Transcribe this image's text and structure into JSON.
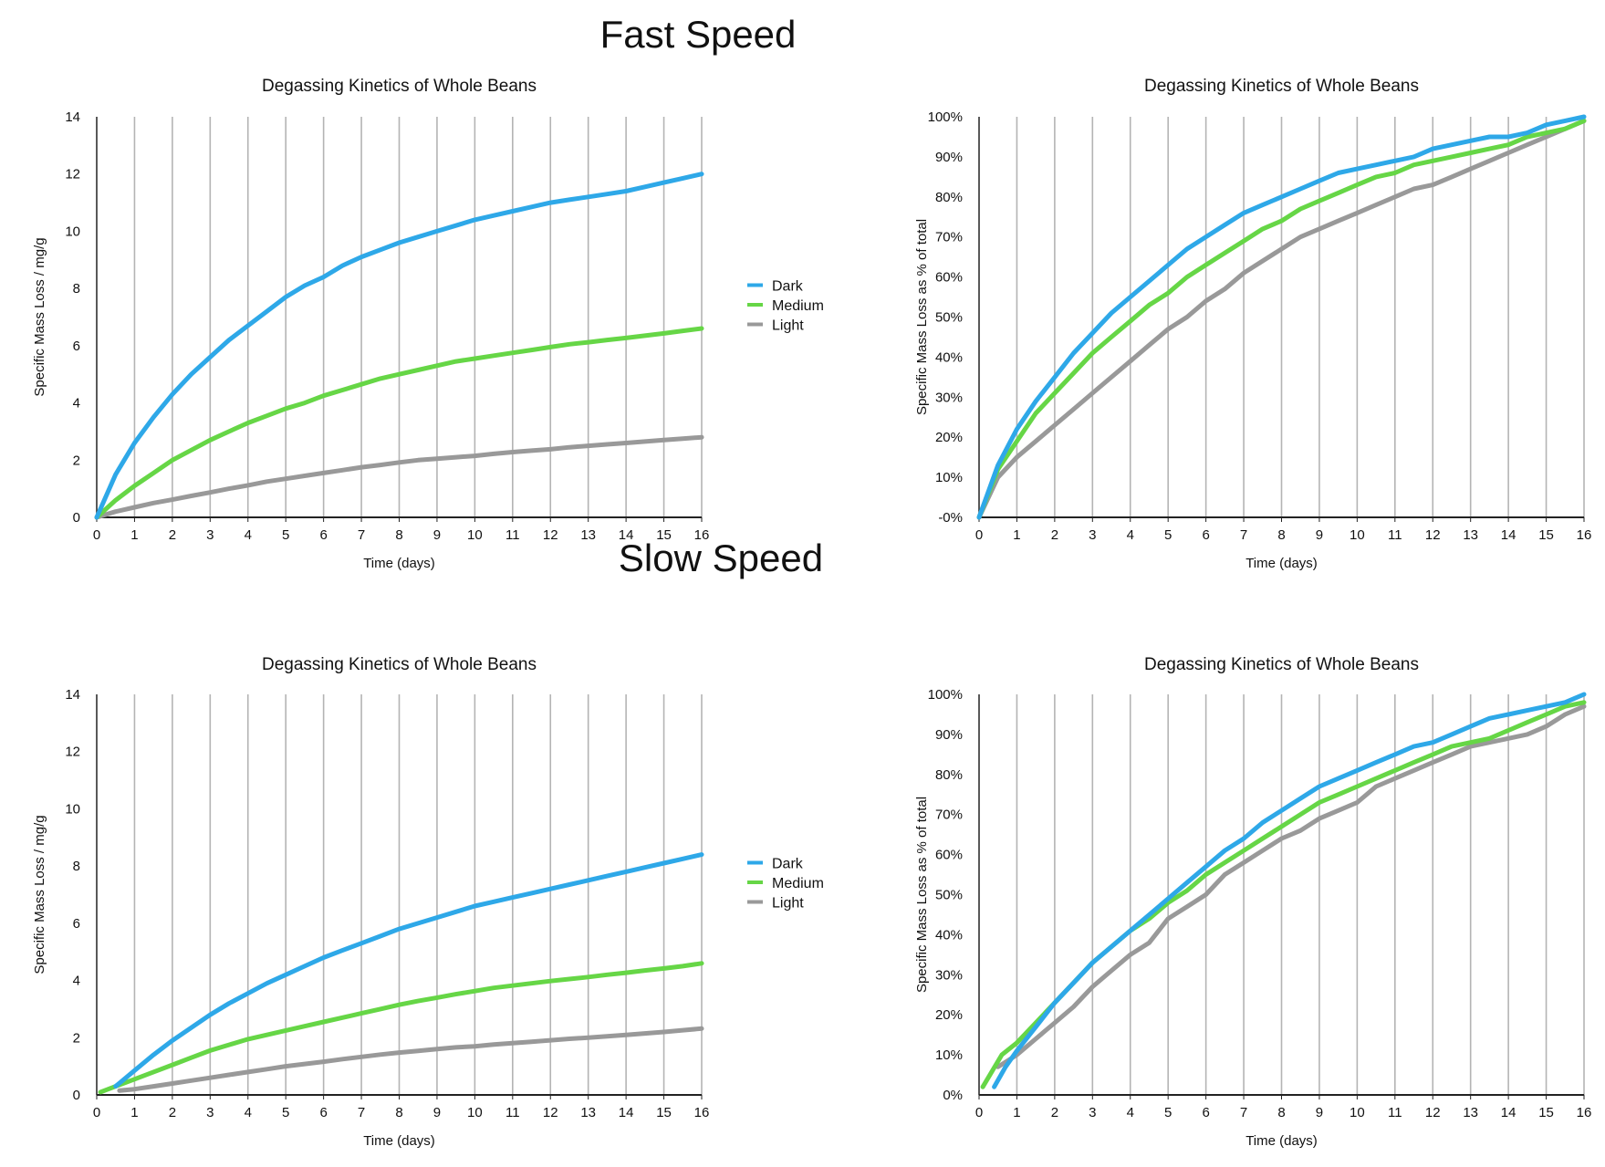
{
  "sections": {
    "fast": "Fast Speed",
    "slow": "Slow Speed"
  },
  "colors": {
    "dark": "#2ea8e8",
    "medium": "#66d646",
    "light": "#999999",
    "grid": "#b4b4b4",
    "axis": "#222222"
  },
  "chart_data": [
    {
      "id": "fast-abs",
      "type": "line",
      "title": "Degassing Kinetics of Whole Beans",
      "xlabel": "Time (days)",
      "ylabel": "Specific Mass Loss / mg/g",
      "xlim": [
        0,
        16
      ],
      "ylim": [
        0,
        14
      ],
      "xticks": [
        "0",
        "1",
        "2",
        "3",
        "4",
        "5",
        "6",
        "7",
        "8",
        "9",
        "10",
        "11",
        "12",
        "13",
        "14",
        "15",
        "16"
      ],
      "yticks": [
        "0",
        "2",
        "4",
        "6",
        "8",
        "10",
        "12",
        "14"
      ],
      "grid": "vertical",
      "legend": "right",
      "series": [
        {
          "name": "Dark",
          "color": "#2ea8e8",
          "x": [
            0,
            0.5,
            1,
            1.5,
            2,
            2.5,
            3,
            3.5,
            4,
            4.5,
            5,
            5.5,
            6,
            6.5,
            7,
            7.5,
            8,
            8.5,
            9,
            9.5,
            10,
            10.5,
            11,
            11.5,
            12,
            12.5,
            13,
            13.5,
            14,
            14.5,
            15,
            15.5,
            16
          ],
          "y": [
            0,
            1.5,
            2.6,
            3.5,
            4.3,
            5,
            5.6,
            6.2,
            6.7,
            7.2,
            7.7,
            8.1,
            8.4,
            8.8,
            9.1,
            9.35,
            9.6,
            9.8,
            10,
            10.2,
            10.4,
            10.55,
            10.7,
            10.85,
            11,
            11.1,
            11.2,
            11.3,
            11.4,
            11.55,
            11.7,
            11.85,
            12
          ]
        },
        {
          "name": "Medium",
          "color": "#66d646",
          "x": [
            0,
            0.5,
            1,
            1.5,
            2,
            2.5,
            3,
            3.5,
            4,
            4.5,
            5,
            5.5,
            6,
            6.5,
            7,
            7.5,
            8,
            8.5,
            9,
            9.5,
            10,
            10.5,
            11,
            11.5,
            12,
            12.5,
            13,
            13.5,
            14,
            14.5,
            15,
            15.5,
            16
          ],
          "y": [
            0,
            0.6,
            1.1,
            1.55,
            2,
            2.35,
            2.7,
            3,
            3.3,
            3.55,
            3.8,
            4,
            4.25,
            4.45,
            4.65,
            4.85,
            5,
            5.15,
            5.3,
            5.45,
            5.55,
            5.65,
            5.75,
            5.85,
            5.95,
            6.05,
            6.12,
            6.2,
            6.27,
            6.35,
            6.43,
            6.52,
            6.6
          ]
        },
        {
          "name": "Light",
          "color": "#999999",
          "x": [
            0,
            0.5,
            1,
            1.5,
            2,
            2.5,
            3,
            3.5,
            4,
            4.5,
            5,
            5.5,
            6,
            6.5,
            7,
            7.5,
            8,
            8.5,
            9,
            9.5,
            10,
            10.5,
            11,
            11.5,
            12,
            12.5,
            13,
            13.5,
            14,
            14.5,
            15,
            15.5,
            16
          ],
          "y": [
            0,
            0.2,
            0.35,
            0.5,
            0.62,
            0.75,
            0.87,
            1,
            1.12,
            1.25,
            1.35,
            1.45,
            1.55,
            1.65,
            1.75,
            1.83,
            1.92,
            2,
            2.05,
            2.1,
            2.15,
            2.22,
            2.28,
            2.33,
            2.38,
            2.45,
            2.5,
            2.55,
            2.6,
            2.65,
            2.7,
            2.75,
            2.8
          ]
        }
      ]
    },
    {
      "id": "fast-pct",
      "type": "line",
      "title": "Degassing Kinetics of Whole Beans",
      "xlabel": "Time (days)",
      "ylabel": "Specific Mass Loss as % of total",
      "xlim": [
        0,
        16
      ],
      "ylim": [
        0,
        100
      ],
      "xticks": [
        "0",
        "1",
        "2",
        "3",
        "4",
        "5",
        "6",
        "7",
        "8",
        "9",
        "10",
        "11",
        "12",
        "13",
        "14",
        "15",
        "16"
      ],
      "yticks": [
        "-0%",
        "10%",
        "20%",
        "30%",
        "40%",
        "50%",
        "60%",
        "70%",
        "80%",
        "90%",
        "100%"
      ],
      "grid": "vertical",
      "series": [
        {
          "name": "Dark",
          "color": "#2ea8e8",
          "x": [
            0,
            0.5,
            1,
            1.5,
            2,
            2.5,
            3,
            3.5,
            4,
            4.5,
            5,
            5.5,
            6,
            6.5,
            7,
            7.5,
            8,
            8.5,
            9,
            9.5,
            10,
            10.5,
            11,
            11.5,
            12,
            12.5,
            13,
            13.5,
            14,
            14.5,
            15,
            15.5,
            16
          ],
          "y": [
            0,
            13,
            22,
            29,
            35,
            41,
            46,
            51,
            55,
            59,
            63,
            67,
            70,
            73,
            76,
            78,
            80,
            82,
            84,
            86,
            87,
            88,
            89,
            90,
            92,
            93,
            94,
            95,
            95,
            96,
            98,
            99,
            100
          ]
        },
        {
          "name": "Medium",
          "color": "#66d646",
          "x": [
            0,
            0.5,
            1,
            1.5,
            2,
            2.5,
            3,
            3.5,
            4,
            4.5,
            5,
            5.5,
            6,
            6.5,
            7,
            7.5,
            8,
            8.5,
            9,
            9.5,
            10,
            10.5,
            11,
            11.5,
            12,
            12.5,
            13,
            13.5,
            14,
            14.5,
            15,
            15.5,
            16
          ],
          "y": [
            0,
            12,
            19,
            26,
            31,
            36,
            41,
            45,
            49,
            53,
            56,
            60,
            63,
            66,
            69,
            72,
            74,
            77,
            79,
            81,
            83,
            85,
            86,
            88,
            89,
            90,
            91,
            92,
            93,
            95,
            96,
            97,
            99
          ]
        },
        {
          "name": "Light",
          "color": "#999999",
          "x": [
            0,
            0.5,
            1,
            1.5,
            2,
            2.5,
            3,
            3.5,
            4,
            4.5,
            5,
            5.5,
            6,
            6.5,
            7,
            7.5,
            8,
            8.5,
            9,
            9.5,
            10,
            10.5,
            11,
            11.5,
            12,
            12.5,
            13,
            13.5,
            14,
            14.5,
            15,
            15.5,
            16
          ],
          "y": [
            0,
            10,
            15,
            19,
            23,
            27,
            31,
            35,
            39,
            43,
            47,
            50,
            54,
            57,
            61,
            64,
            67,
            70,
            72,
            74,
            76,
            78,
            80,
            82,
            83,
            85,
            87,
            89,
            91,
            93,
            95,
            97,
            99
          ]
        }
      ]
    },
    {
      "id": "slow-abs",
      "type": "line",
      "title": "Degassing Kinetics of Whole Beans",
      "xlabel": "Time (days)",
      "ylabel": "Specific Mass Loss / mg/g",
      "xlim": [
        0,
        16
      ],
      "ylim": [
        0,
        14
      ],
      "xticks": [
        "0",
        "1",
        "2",
        "3",
        "4",
        "5",
        "6",
        "7",
        "8",
        "9",
        "10",
        "11",
        "12",
        "13",
        "14",
        "15",
        "16"
      ],
      "yticks": [
        "0",
        "2",
        "4",
        "6",
        "8",
        "10",
        "12",
        "14"
      ],
      "grid": "vertical",
      "legend": "right",
      "series": [
        {
          "name": "Dark",
          "color": "#2ea8e8",
          "x": [
            0.5,
            1,
            1.5,
            2,
            2.5,
            3,
            3.5,
            4,
            4.5,
            5,
            5.5,
            6,
            6.5,
            7,
            7.5,
            8,
            8.5,
            9,
            9.5,
            10,
            10.5,
            11,
            11.5,
            12,
            12.5,
            13,
            13.5,
            14,
            14.5,
            15,
            15.5,
            16
          ],
          "y": [
            0.3,
            0.85,
            1.4,
            1.9,
            2.35,
            2.8,
            3.2,
            3.55,
            3.9,
            4.2,
            4.5,
            4.8,
            5.05,
            5.3,
            5.55,
            5.8,
            6,
            6.2,
            6.4,
            6.6,
            6.75,
            6.9,
            7.05,
            7.2,
            7.35,
            7.5,
            7.65,
            7.8,
            7.95,
            8.1,
            8.25,
            8.4
          ]
        },
        {
          "name": "Medium",
          "color": "#66d646",
          "x": [
            0.1,
            0.5,
            1,
            1.5,
            2,
            2.5,
            3,
            3.5,
            4,
            4.5,
            5,
            5.5,
            6,
            6.5,
            7,
            7.5,
            8,
            8.5,
            9,
            9.5,
            10,
            10.5,
            11,
            11.5,
            12,
            12.5,
            13,
            13.5,
            14,
            14.5,
            15,
            15.5,
            16
          ],
          "y": [
            0.1,
            0.3,
            0.55,
            0.8,
            1.05,
            1.3,
            1.55,
            1.75,
            1.95,
            2.1,
            2.25,
            2.4,
            2.55,
            2.7,
            2.85,
            3,
            3.15,
            3.28,
            3.4,
            3.52,
            3.63,
            3.74,
            3.82,
            3.9,
            3.98,
            4.05,
            4.12,
            4.2,
            4.27,
            4.35,
            4.42,
            4.5,
            4.6
          ]
        },
        {
          "name": "Light",
          "color": "#999999",
          "x": [
            0.6,
            1,
            1.5,
            2,
            2.5,
            3,
            3.5,
            4,
            4.5,
            5,
            5.5,
            6,
            6.5,
            7,
            7.5,
            8,
            8.5,
            9,
            9.5,
            10,
            10.5,
            11,
            11.5,
            12,
            12.5,
            13,
            13.5,
            14,
            14.5,
            15,
            15.5,
            16
          ],
          "y": [
            0.15,
            0.2,
            0.3,
            0.4,
            0.5,
            0.6,
            0.7,
            0.8,
            0.9,
            1,
            1.08,
            1.16,
            1.25,
            1.33,
            1.41,
            1.48,
            1.54,
            1.6,
            1.66,
            1.7,
            1.76,
            1.81,
            1.86,
            1.91,
            1.96,
            2,
            2.05,
            2.1,
            2.15,
            2.2,
            2.26,
            2.32
          ]
        }
      ]
    },
    {
      "id": "slow-pct",
      "type": "line",
      "title": "Degassing Kinetics of Whole Beans",
      "xlabel": "Time (days)",
      "ylabel": "Specific Mass Loss as % of total",
      "xlim": [
        0,
        16
      ],
      "ylim": [
        0,
        100
      ],
      "xticks": [
        "0",
        "1",
        "2",
        "3",
        "4",
        "5",
        "6",
        "7",
        "8",
        "9",
        "10",
        "11",
        "12",
        "13",
        "14",
        "15",
        "16"
      ],
      "yticks": [
        "0%",
        "10%",
        "20%",
        "30%",
        "40%",
        "50%",
        "60%",
        "70%",
        "80%",
        "90%",
        "100%"
      ],
      "grid": "vertical",
      "series": [
        {
          "name": "Dark",
          "color": "#2ea8e8",
          "x": [
            0.4,
            0.7,
            1,
            1.5,
            2,
            2.5,
            3,
            3.5,
            4,
            4.5,
            5,
            5.5,
            6,
            6.5,
            7,
            7.5,
            8,
            8.5,
            9,
            9.5,
            10,
            10.5,
            11,
            11.5,
            12,
            12.5,
            13,
            13.5,
            14,
            14.5,
            15,
            15.5,
            16
          ],
          "y": [
            2,
            7,
            11,
            17,
            23,
            28,
            33,
            37,
            41,
            45,
            49,
            53,
            57,
            61,
            64,
            68,
            71,
            74,
            77,
            79,
            81,
            83,
            85,
            87,
            88,
            90,
            92,
            94,
            95,
            96,
            97,
            98,
            100
          ]
        },
        {
          "name": "Medium",
          "color": "#66d646",
          "x": [
            0.1,
            0.6,
            1,
            1.5,
            2,
            2.5,
            3,
            3.5,
            4,
            4.5,
            5,
            5.5,
            6,
            6.5,
            7,
            7.5,
            8,
            8.5,
            9,
            9.5,
            10,
            10.5,
            11,
            11.5,
            12,
            12.5,
            13,
            13.5,
            14,
            14.5,
            15,
            15.5,
            16
          ],
          "y": [
            2,
            10,
            13,
            18,
            23,
            28,
            33,
            37,
            41,
            44,
            48,
            51,
            55,
            58,
            61,
            64,
            67,
            70,
            73,
            75,
            77,
            79,
            81,
            83,
            85,
            87,
            88,
            89,
            91,
            93,
            95,
            97,
            98
          ]
        },
        {
          "name": "Light",
          "color": "#999999",
          "x": [
            0.5,
            1,
            1.5,
            2,
            2.5,
            3,
            3.5,
            4,
            4.5,
            5,
            5.5,
            6,
            6.5,
            7,
            7.5,
            8,
            8.5,
            9,
            9.5,
            10,
            10.5,
            11,
            11.5,
            12,
            12.5,
            13,
            13.5,
            14,
            14.5,
            15,
            15.5,
            16
          ],
          "y": [
            7,
            10,
            14,
            18,
            22,
            27,
            31,
            35,
            38,
            44,
            47,
            50,
            55,
            58,
            61,
            64,
            66,
            69,
            71,
            73,
            77,
            79,
            81,
            83,
            85,
            87,
            88,
            89,
            90,
            92,
            95,
            97
          ]
        }
      ]
    }
  ]
}
